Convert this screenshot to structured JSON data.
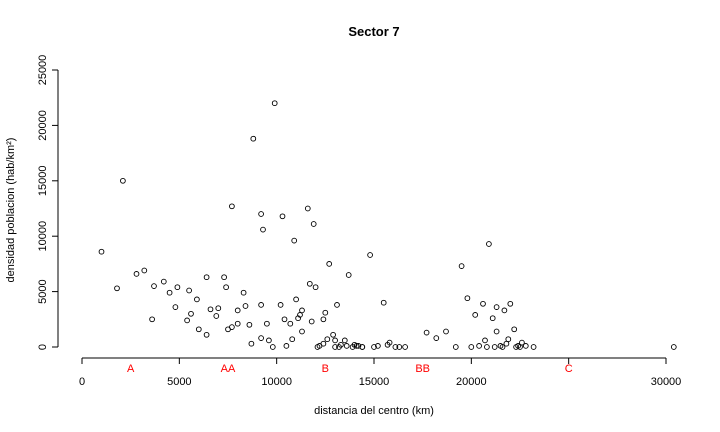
{
  "chart_data": {
    "type": "scatter",
    "title": "Sector 7",
    "xlabel": "distancia del centro (km)",
    "ylabel": "densidad poblacion (hab/km²)",
    "xlim": [
      0,
      31000
    ],
    "ylim": [
      0,
      25000
    ],
    "xticks": [
      0,
      5000,
      10000,
      15000,
      20000,
      25000,
      30000
    ],
    "xtick_labels": [
      "0",
      "5000",
      "10000",
      "15000",
      "20000",
      "",
      "30000"
    ],
    "yticks": [
      0,
      5000,
      10000,
      15000,
      20000,
      25000
    ],
    "ytick_labels": [
      "0",
      "5000",
      "10000",
      "15000",
      "20000",
      "25000"
    ],
    "grid": false,
    "point_color": "#000000",
    "annotation_color": "#ff0000",
    "annotations": [
      {
        "text": "A",
        "x": 2500
      },
      {
        "text": "AA",
        "x": 7500
      },
      {
        "text": "B",
        "x": 12500
      },
      {
        "text": "BB",
        "x": 17500
      },
      {
        "text": "C",
        "x": 25000
      }
    ],
    "points": [
      [
        1000,
        8600
      ],
      [
        1800,
        5300
      ],
      [
        2100,
        15000
      ],
      [
        2800,
        6600
      ],
      [
        3200,
        6900
      ],
      [
        3700,
        5500
      ],
      [
        3600,
        2500
      ],
      [
        4200,
        5900
      ],
      [
        4500,
        4900
      ],
      [
        4900,
        5400
      ],
      [
        4800,
        3600
      ],
      [
        5400,
        2400
      ],
      [
        5600,
        3000
      ],
      [
        5500,
        5100
      ],
      [
        6000,
        1600
      ],
      [
        5900,
        4300
      ],
      [
        6400,
        6300
      ],
      [
        6400,
        1100
      ],
      [
        6600,
        3400
      ],
      [
        6900,
        2800
      ],
      [
        7000,
        3500
      ],
      [
        7300,
        6300
      ],
      [
        7400,
        5400
      ],
      [
        7500,
        1600
      ],
      [
        7700,
        1800
      ],
      [
        7700,
        12700
      ],
      [
        8000,
        2100
      ],
      [
        8000,
        3300
      ],
      [
        8300,
        4900
      ],
      [
        8400,
        3700
      ],
      [
        8600,
        2000
      ],
      [
        8700,
        300
      ],
      [
        8800,
        18800
      ],
      [
        9200,
        3800
      ],
      [
        9200,
        12000
      ],
      [
        9200,
        800
      ],
      [
        9300,
        10600
      ],
      [
        9500,
        2100
      ],
      [
        9600,
        600
      ],
      [
        9800,
        0
      ],
      [
        9900,
        22000
      ],
      [
        10200,
        3800
      ],
      [
        10300,
        11800
      ],
      [
        10400,
        2500
      ],
      [
        10500,
        100
      ],
      [
        10700,
        2100
      ],
      [
        10900,
        9600
      ],
      [
        10800,
        700
      ],
      [
        11000,
        4300
      ],
      [
        11100,
        2600
      ],
      [
        11200,
        2900
      ],
      [
        11300,
        3300
      ],
      [
        11300,
        1400
      ],
      [
        11600,
        12500
      ],
      [
        11700,
        5700
      ],
      [
        11800,
        2300
      ],
      [
        11900,
        11100
      ],
      [
        12000,
        5400
      ],
      [
        12100,
        0
      ],
      [
        12200,
        100
      ],
      [
        12400,
        2500
      ],
      [
        12500,
        3100
      ],
      [
        12400,
        300
      ],
      [
        12600,
        700
      ],
      [
        12700,
        7500
      ],
      [
        12900,
        1100
      ],
      [
        13000,
        600
      ],
      [
        13000,
        0
      ],
      [
        13100,
        3800
      ],
      [
        13200,
        0
      ],
      [
        13300,
        200
      ],
      [
        13500,
        600
      ],
      [
        13600,
        100
      ],
      [
        13700,
        6500
      ],
      [
        13900,
        0
      ],
      [
        14000,
        200
      ],
      [
        14100,
        100
      ],
      [
        14200,
        100
      ],
      [
        14400,
        0
      ],
      [
        14400,
        0
      ],
      [
        14800,
        8300
      ],
      [
        15000,
        0
      ],
      [
        15200,
        100
      ],
      [
        15500,
        4000
      ],
      [
        15700,
        200
      ],
      [
        15800,
        400
      ],
      [
        16100,
        0
      ],
      [
        16300,
        0
      ],
      [
        16600,
        0
      ],
      [
        17700,
        1300
      ],
      [
        18200,
        800
      ],
      [
        18700,
        1400
      ],
      [
        19200,
        0
      ],
      [
        19500,
        7300
      ],
      [
        19800,
        4400
      ],
      [
        20000,
        0
      ],
      [
        20200,
        2900
      ],
      [
        20400,
        100
      ],
      [
        20600,
        3900
      ],
      [
        20700,
        600
      ],
      [
        20800,
        0
      ],
      [
        20900,
        9300
      ],
      [
        21100,
        2600
      ],
      [
        21200,
        0
      ],
      [
        21300,
        3600
      ],
      [
        21300,
        1400
      ],
      [
        21500,
        100
      ],
      [
        21600,
        0
      ],
      [
        21700,
        3300
      ],
      [
        21800,
        300
      ],
      [
        21900,
        700
      ],
      [
        22000,
        3900
      ],
      [
        22200,
        1600
      ],
      [
        22300,
        0
      ],
      [
        22400,
        100
      ],
      [
        22500,
        0
      ],
      [
        22600,
        400
      ],
      [
        22800,
        100
      ],
      [
        23200,
        0
      ],
      [
        30400,
        0
      ]
    ]
  }
}
